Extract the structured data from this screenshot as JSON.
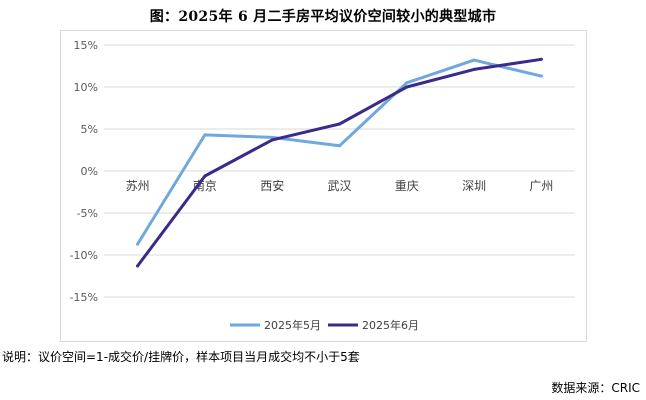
{
  "title": "图：2025年 6 月二手房平均议价空间较小的典型城市",
  "note": "说明：议价空间=1-成交价/挂牌价，样本项目当月成交均不小于5套",
  "source": "数据来源：CRIC",
  "chart_data": {
    "type": "line",
    "title": "图：2025年 6 月二手房平均议价空间较小的典型城市",
    "categories": [
      "苏州",
      "南京",
      "西安",
      "武汉",
      "重庆",
      "深圳",
      "广州"
    ],
    "series": [
      {
        "name": "2025年5月",
        "color": "#6fa8dc",
        "values": [
          -8.7,
          4.3,
          4.0,
          3.0,
          10.5,
          13.2,
          11.3
        ]
      },
      {
        "name": "2025年6月",
        "color": "#3b2a8a",
        "values": [
          -11.3,
          -0.6,
          3.7,
          5.6,
          10.0,
          12.1,
          13.3
        ]
      }
    ],
    "yticks": [
      "15%",
      "10%",
      "5%",
      "0%",
      "-5%",
      "-10%",
      "-15%"
    ],
    "ylim": [
      -15,
      15
    ],
    "grid": true,
    "legend_position": "bottom-center",
    "xlabel": "",
    "ylabel": ""
  }
}
